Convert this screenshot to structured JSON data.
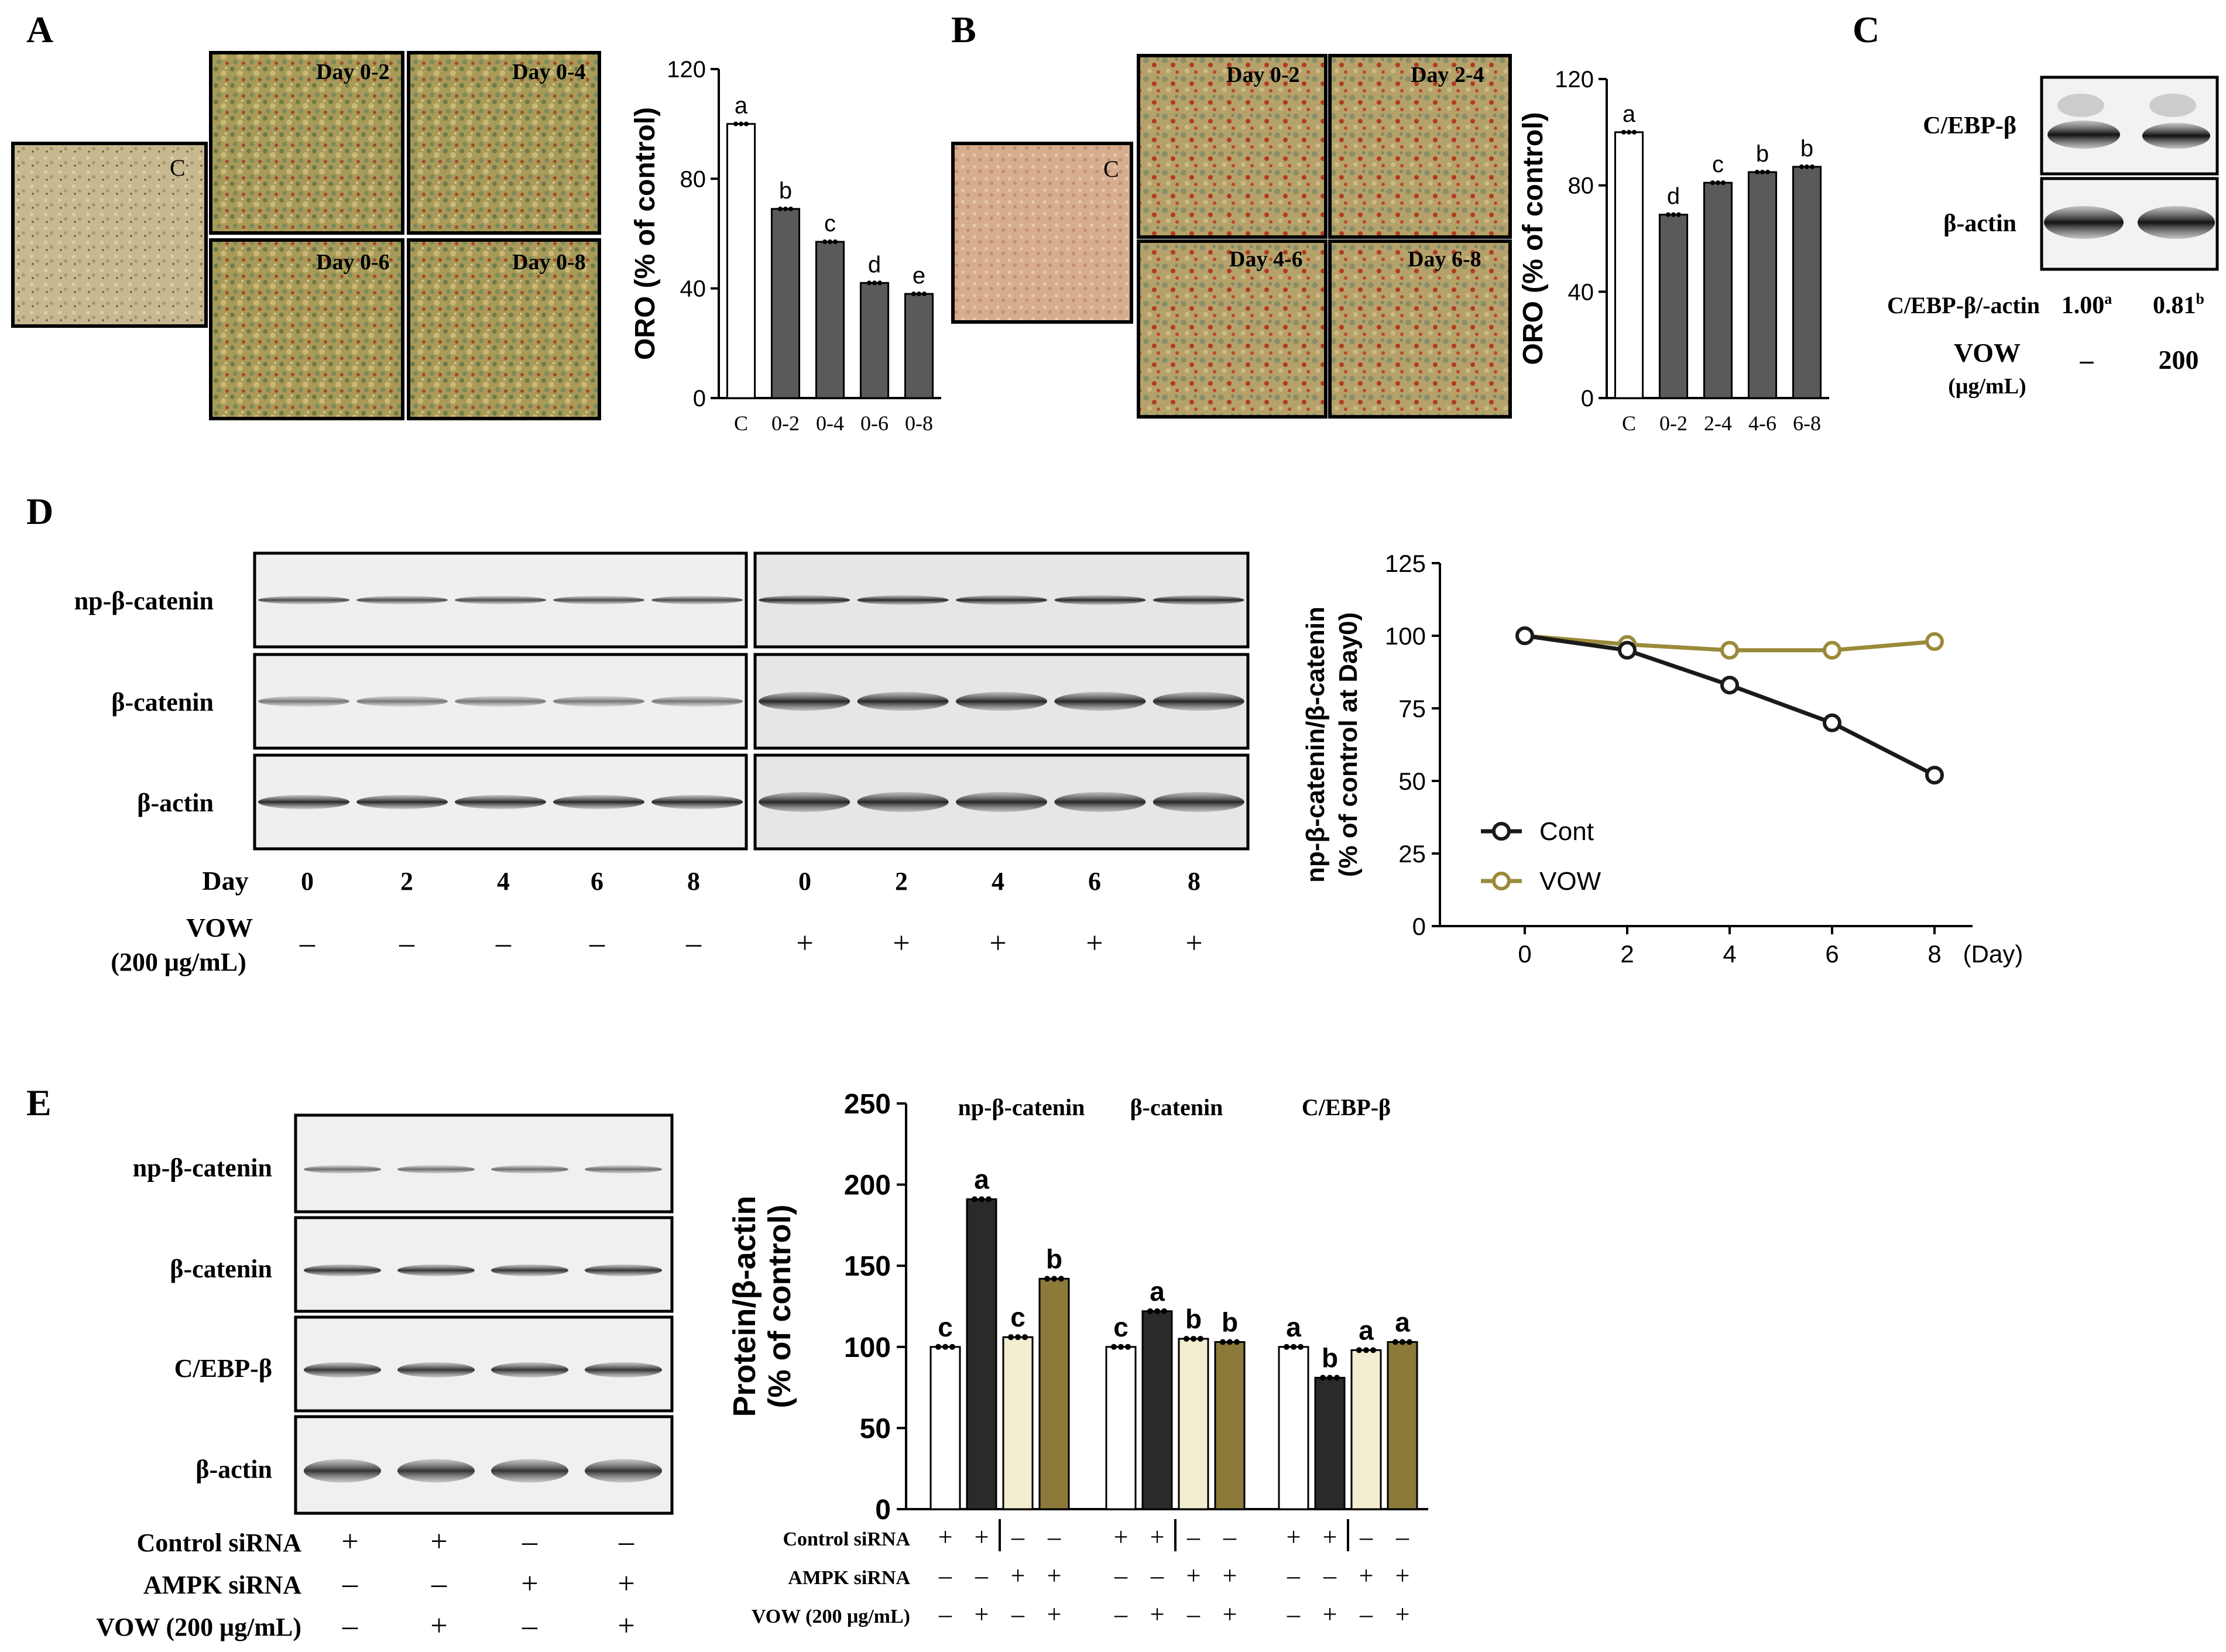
{
  "panels": {
    "A": {
      "label": "A",
      "micrographs": [
        "C",
        "Day 0-2",
        "Day 0-4",
        "Day 0-6",
        "Day 0-8"
      ],
      "chart_data": {
        "type": "bar",
        "categories": [
          "C",
          "0-2",
          "0-4",
          "0-6",
          "0-8"
        ],
        "values": [
          100,
          69,
          57,
          42,
          38
        ],
        "letters": [
          "a",
          "b",
          "c",
          "d",
          "e"
        ],
        "ylabel": "ORO (% of control)",
        "ylim": [
          0,
          120
        ],
        "yticks": [
          0,
          40,
          80,
          120
        ],
        "colors": [
          "#ffffff",
          "#5a5a5a",
          "#5a5a5a",
          "#5a5a5a",
          "#5a5a5a"
        ]
      }
    },
    "B": {
      "label": "B",
      "micrographs": [
        "C",
        "Day 0-2",
        "Day 2-4",
        "Day 4-6",
        "Day 6-8"
      ],
      "chart_data": {
        "type": "bar",
        "categories": [
          "C",
          "0-2",
          "2-4",
          "4-6",
          "6-8"
        ],
        "values": [
          100,
          69,
          81,
          85,
          87
        ],
        "letters": [
          "a",
          "d",
          "c",
          "b",
          "b"
        ],
        "ylabel": "ORO (% of control)",
        "ylim": [
          0,
          120
        ],
        "yticks": [
          0,
          40,
          80,
          120
        ],
        "colors": [
          "#ffffff",
          "#5a5a5a",
          "#5a5a5a",
          "#5a5a5a",
          "#5a5a5a"
        ]
      }
    },
    "C": {
      "label": "C",
      "blot_labels": [
        "C/EBP-β",
        "β-actin"
      ],
      "ratio_label": "C/EBP-β/-actin",
      "ratios": [
        {
          "value": "1.00",
          "sup": "a"
        },
        {
          "value": "0.81",
          "sup": "b"
        }
      ],
      "treatment_label": "VOW",
      "treatment_unit": "(μg/mL)",
      "treatment_values": [
        "–",
        "200"
      ]
    },
    "D": {
      "label": "D",
      "blot_labels": [
        "np-β-catenin",
        "β-catenin",
        "β-actin"
      ],
      "day_label": "Day",
      "days": [
        "0",
        "2",
        "4",
        "6",
        "8",
        "0",
        "2",
        "4",
        "6",
        "8"
      ],
      "vow_label_1": "VOW",
      "vow_label_2": "(200 μg/mL)",
      "vow_signs": [
        "–",
        "–",
        "–",
        "–",
        "–",
        "+",
        "+",
        "+",
        "+",
        "+"
      ],
      "chart_data": {
        "type": "line",
        "x": [
          0,
          2,
          4,
          6,
          8
        ],
        "series": [
          {
            "name": "Cont",
            "values": [
              100,
              95,
              83,
              70,
              52
            ],
            "color": "#1a1a1a"
          },
          {
            "name": "VOW",
            "values": [
              100,
              97,
              95,
              95,
              98
            ],
            "color": "#9a8a3a"
          }
        ],
        "ylabel_1": "np-β-catenin/β-catenin",
        "ylabel_2": "(% of control at Day0)",
        "xlabel": "(Day)",
        "ylim": [
          0,
          125
        ],
        "yticks": [
          0,
          25,
          50,
          75,
          100,
          125
        ],
        "xticks": [
          0,
          2,
          4,
          6,
          8
        ],
        "legend": "bottom-left"
      }
    },
    "E": {
      "label": "E",
      "blot_labels": [
        "np-β-catenin",
        "β-catenin",
        "C/EBP-β",
        "β-actin"
      ],
      "rows": [
        {
          "label": "Control siRNA",
          "signs": [
            "+",
            "+",
            "–",
            "–"
          ]
        },
        {
          "label": "AMPK  siRNA",
          "signs": [
            "–",
            "–",
            "+",
            "+"
          ]
        },
        {
          "label": "VOW  (200  μg/mL)",
          "signs": [
            "–",
            "+",
            "–",
            "+"
          ]
        }
      ],
      "chart_data": {
        "type": "bar",
        "groups": [
          "np-β-catenin",
          "β-catenin",
          "C/EBP-β"
        ],
        "values": [
          [
            100,
            191,
            106,
            142
          ],
          [
            100,
            122,
            105,
            103
          ],
          [
            100,
            81,
            98,
            103
          ]
        ],
        "letters": [
          [
            "c",
            "a",
            "c",
            "b"
          ],
          [
            "c",
            "a",
            "b",
            "b"
          ],
          [
            "a",
            "b",
            "a",
            "a"
          ]
        ],
        "bar_colors": [
          "#ffffff",
          "#2a2a2a",
          "#f3edd2",
          "#8c7a3a"
        ],
        "ylabel_1": "Protein/β-actin",
        "ylabel_2": "(% of control)",
        "ylim": [
          0,
          250
        ],
        "yticks": [
          0,
          50,
          100,
          150,
          200,
          250
        ],
        "row_labels": [
          "Control siRNA",
          "AMPK siRNA",
          "VOW (200 μg/mL)"
        ],
        "row_signs": [
          [
            "+",
            "+",
            "–",
            "–"
          ],
          [
            "–",
            "–",
            "+",
            "+"
          ],
          [
            "–",
            "+",
            "–",
            "+"
          ]
        ]
      }
    }
  }
}
